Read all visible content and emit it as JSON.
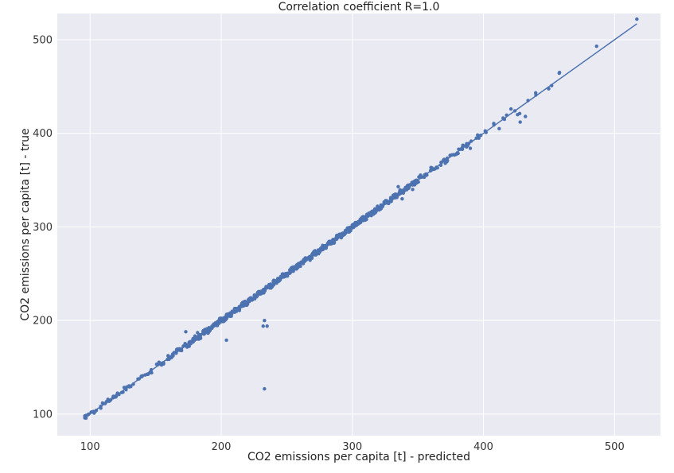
{
  "chart_data": {
    "type": "scatter",
    "title": "Correlation coefficient R=1.0",
    "xlabel": "CO2 emissions per capita [t] - predicted",
    "ylabel": "CO2 emissions per capita [t] - true",
    "xlim": [
      75,
      535
    ],
    "ylim": [
      77,
      528
    ],
    "x_ticks": [
      100,
      200,
      300,
      400,
      500
    ],
    "y_ticks": [
      100,
      200,
      300,
      400,
      500
    ],
    "x_tick_labels": [
      "100",
      "200",
      "300",
      "400",
      "500"
    ],
    "y_tick_labels": [
      "100",
      "200",
      "300",
      "400",
      "500"
    ],
    "grid": true,
    "background": "#eaeaf2",
    "grid_color": "#ffffff",
    "point_color": "#4c72b0",
    "line_color": "#4c72b0",
    "fit_line": {
      "x": [
        95,
        517
      ],
      "y": [
        95,
        517
      ]
    },
    "outliers": {
      "x": [
        233,
        235,
        232,
        233,
        204,
        428,
        432,
        412,
        390,
        346,
        338,
        335,
        173,
        182
      ],
      "y": [
        127,
        194,
        194,
        200,
        179,
        412,
        418,
        405,
        384,
        340,
        330,
        343,
        188,
        187
      ]
    },
    "points": {
      "x": [
        96,
        99,
        104,
        110,
        114,
        118,
        122,
        128,
        133,
        140,
        146,
        152,
        156,
        160,
        163,
        166,
        169,
        172,
        176,
        180,
        184,
        187,
        190,
        193,
        196,
        199,
        202,
        205,
        208,
        211,
        214,
        217,
        220,
        223,
        226,
        229,
        232,
        235,
        238,
        241,
        244,
        247,
        250,
        253,
        256,
        259,
        262,
        265,
        268,
        271,
        274,
        277,
        280,
        283,
        286,
        289,
        292,
        295,
        298,
        301,
        304,
        307,
        310,
        313,
        316,
        319,
        322,
        325,
        328,
        331,
        334,
        337,
        340,
        344,
        348,
        352,
        356,
        360,
        364,
        368,
        372,
        376,
        380,
        384,
        388,
        396,
        402,
        408,
        416,
        421,
        426,
        434,
        440,
        452,
        458,
        517
      ],
      "y": [
        96,
        100,
        103,
        111,
        114,
        119,
        121,
        129,
        132,
        141,
        145,
        153,
        155,
        161,
        162,
        167,
        168,
        173,
        175,
        181,
        183,
        188,
        189,
        194,
        195,
        200,
        201,
        206,
        207,
        212,
        213,
        218,
        219,
        224,
        225,
        230,
        231,
        236,
        237,
        242,
        243,
        248,
        249,
        254,
        255,
        260,
        261,
        266,
        267,
        272,
        273,
        278,
        279,
        284,
        285,
        290,
        291,
        296,
        297,
        302,
        303,
        308,
        309,
        314,
        315,
        320,
        321,
        326,
        327,
        332,
        333,
        338,
        339,
        345,
        347,
        353,
        355,
        361,
        363,
        369,
        371,
        377,
        379,
        385,
        387,
        397,
        401,
        409,
        415,
        426,
        420,
        435,
        441,
        451,
        465,
        522
      ]
    }
  }
}
